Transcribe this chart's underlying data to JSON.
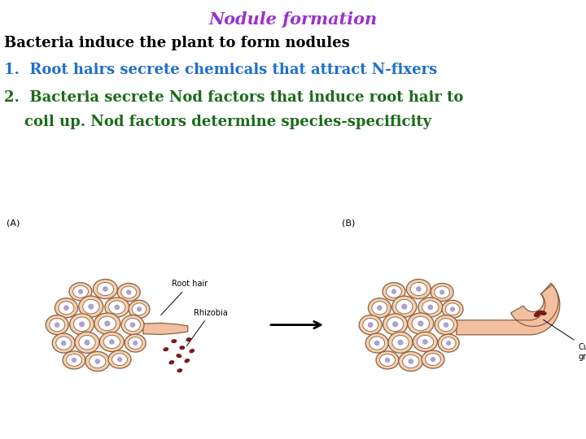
{
  "title": "Nodule formation",
  "title_color": "#9B30D0",
  "title_fontsize": 15,
  "title_fontstyle": "italic",
  "title_fontweight": "bold",
  "subtitle": "Bacteria induce the plant to form nodules",
  "subtitle_color": "#000000",
  "subtitle_fontsize": 13,
  "subtitle_fontweight": "bold",
  "item1_num": "1.",
  "item1_text": "  Root hairs secrete chemicals that attract N-fixers",
  "item1_color": "#1E6FCC",
  "item2_num": "2.",
  "item2_text": "  Bacteria secrete Nod factors that induce root hair to",
  "item2_line2": "    coil up. Nod factors determine species-specificity",
  "item2_color": "#1A6B1A",
  "item_fontsize": 13,
  "item_fontweight": "bold",
  "background_color": "#ffffff",
  "cell_fill": "#F5D0B0",
  "cell_border": "#8B6040",
  "cell_inner_fill": "#FFFFFF",
  "cell_dot_color": "#B0A0CC",
  "hair_fill": "#F2C0A0",
  "hair_border": "#8B6040",
  "rhizobia_color": "#7B1A1A",
  "label_fontsize": 7,
  "ab_label_fontsize": 8
}
